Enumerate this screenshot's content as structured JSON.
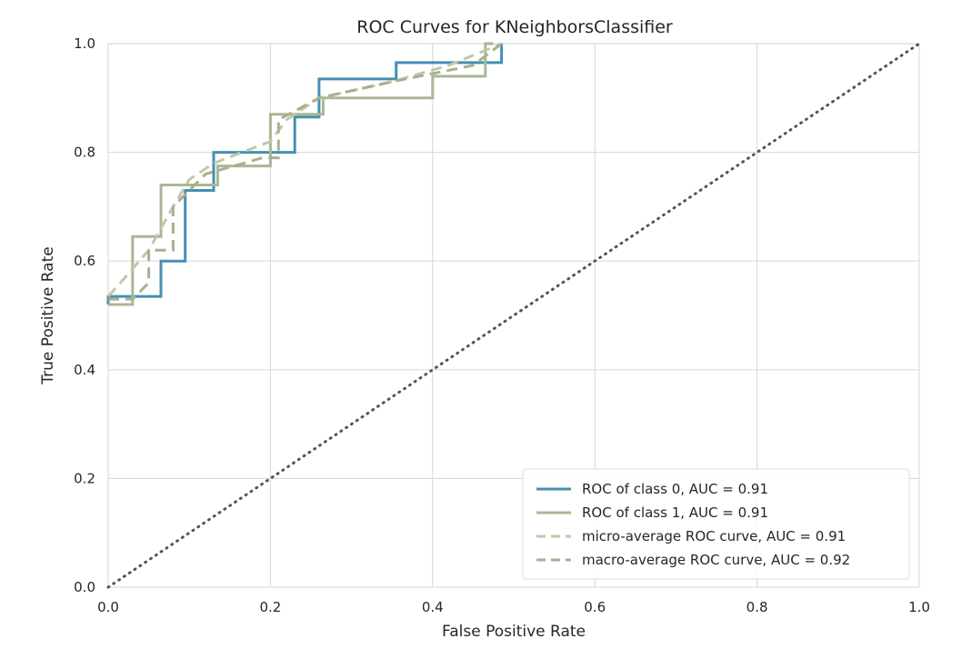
{
  "chart_data": {
    "type": "line",
    "title": "ROC Curves for KNeighborsClassifier",
    "xlabel": "False Positive Rate",
    "ylabel": "True Positive Rate",
    "xlim": [
      0.0,
      1.0
    ],
    "ylim": [
      0.0,
      1.0
    ],
    "xticks": [
      "0.0",
      "0.2",
      "0.4",
      "0.6",
      "0.8",
      "1.0"
    ],
    "yticks": [
      "0.0",
      "0.2",
      "0.4",
      "0.6",
      "0.8",
      "1.0"
    ],
    "grid": true,
    "legend_position": "lower-right",
    "series": [
      {
        "name": "ROC of class 0, AUC = 0.91",
        "color": "#4590b2",
        "style": "solid",
        "x": [
          0.0,
          0.0,
          0.065,
          0.065,
          0.095,
          0.095,
          0.13,
          0.13,
          0.23,
          0.23,
          0.26,
          0.26,
          0.355,
          0.355,
          0.485,
          0.485
        ],
        "y": [
          0.52,
          0.535,
          0.535,
          0.6,
          0.6,
          0.73,
          0.73,
          0.8,
          0.8,
          0.865,
          0.865,
          0.935,
          0.935,
          0.965,
          0.965,
          1.0
        ]
      },
      {
        "name": "ROC of class 1, AUC = 0.91",
        "color": "#a8b894",
        "style": "solid",
        "x": [
          0.0,
          0.0,
          0.03,
          0.03,
          0.065,
          0.065,
          0.135,
          0.135,
          0.2,
          0.2,
          0.265,
          0.265,
          0.4,
          0.4,
          0.465,
          0.465,
          0.475
        ],
        "y": [
          0.52,
          0.52,
          0.52,
          0.645,
          0.645,
          0.74,
          0.74,
          0.775,
          0.775,
          0.87,
          0.87,
          0.9,
          0.9,
          0.94,
          0.94,
          1.0,
          1.0
        ]
      },
      {
        "name": "micro-average ROC curve, AUC = 0.91",
        "color": "#c2c7aa",
        "style": "dashed",
        "x": [
          0.0,
          0.015,
          0.05,
          0.08,
          0.1,
          0.13,
          0.2,
          0.22,
          0.26,
          0.35,
          0.42,
          0.485
        ],
        "y": [
          0.535,
          0.56,
          0.62,
          0.7,
          0.75,
          0.78,
          0.82,
          0.86,
          0.9,
          0.93,
          0.96,
          1.0
        ]
      },
      {
        "name": "macro-average ROC curve, AUC = 0.92",
        "color": "#a8b08e",
        "style": "dashed",
        "x": [
          0.0,
          0.03,
          0.05,
          0.05,
          0.08,
          0.08,
          0.12,
          0.19,
          0.21,
          0.21,
          0.26,
          0.35,
          0.45,
          0.485
        ],
        "y": [
          0.53,
          0.53,
          0.56,
          0.62,
          0.62,
          0.7,
          0.76,
          0.79,
          0.79,
          0.86,
          0.9,
          0.93,
          0.96,
          1.0
        ]
      }
    ],
    "reference_line": {
      "style": "dotted",
      "color": "#555555",
      "x": [
        0.0,
        1.0
      ],
      "y": [
        0.0,
        1.0
      ]
    }
  }
}
